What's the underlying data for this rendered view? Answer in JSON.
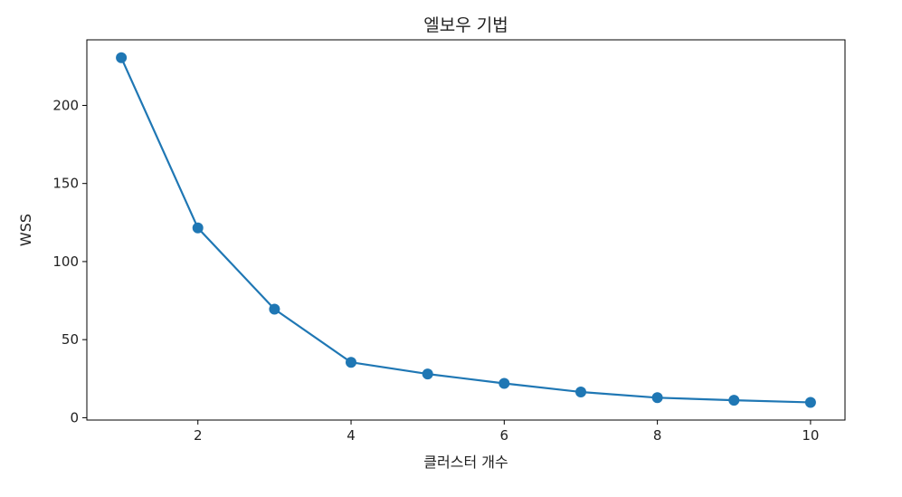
{
  "chart_data": {
    "type": "line",
    "title": "엘보우 기법",
    "xlabel": "클러스터 개수",
    "ylabel": "WSS",
    "x": [
      1,
      2,
      3,
      4,
      5,
      6,
      7,
      8,
      9,
      10
    ],
    "series": [
      {
        "values": [
          230.5,
          121.5,
          69.5,
          35.5,
          28.0,
          22.0,
          16.5,
          12.8,
          11.2,
          9.8
        ],
        "color": "#1f77b4",
        "marker": "circle"
      }
    ],
    "xlim": [
      0.55,
      10.45
    ],
    "ylim": [
      -1.5,
      242
    ],
    "xticks": [
      2,
      4,
      6,
      8,
      10
    ],
    "xtick_labels": [
      "2",
      "4",
      "6",
      "8",
      "10"
    ],
    "yticks": [
      0,
      50,
      100,
      150,
      200
    ],
    "ytick_labels": [
      "0",
      "50",
      "100",
      "150",
      "200"
    ],
    "grid": false,
    "legend": "none"
  }
}
